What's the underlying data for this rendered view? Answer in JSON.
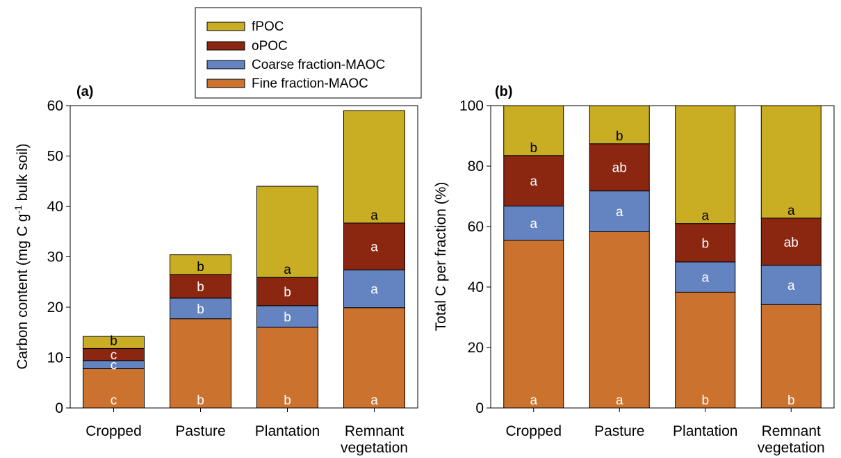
{
  "legend": {
    "items": [
      {
        "label": "fPOC",
        "color": "#c9ad23"
      },
      {
        "label": "oPOC",
        "color": "#8b2611"
      },
      {
        "label": "Coarse fraction-MAOC",
        "color": "#6384c0"
      },
      {
        "label": "Fine fraction-MAOC",
        "color": "#cc722f"
      }
    ]
  },
  "chart_data": [
    {
      "panel_label": "(a)",
      "type": "bar",
      "stacked": true,
      "categories": [
        [
          "Cropped"
        ],
        [
          "Pasture"
        ],
        [
          "Plantation"
        ],
        [
          "Remnant",
          "vegetation"
        ]
      ],
      "ylabel": "Carbon content (mg C g",
      "ylabel_sup": "-1",
      "ylabel_suffix": " bulk soil)",
      "ylim": [
        0,
        60
      ],
      "yticks": [
        0,
        10,
        20,
        30,
        40,
        50,
        60
      ],
      "series": [
        {
          "name": "Fine fraction-MAOC",
          "color": "#cc722f",
          "values": [
            7.8,
            17.7,
            16.0,
            19.9
          ],
          "letters": [
            "c",
            "b",
            "b",
            "a"
          ],
          "letter_color": "#ffffff",
          "letter_pos": "bottom"
        },
        {
          "name": "Coarse fraction-MAOC",
          "color": "#6384c0",
          "values": [
            1.6,
            4.1,
            4.3,
            7.5
          ],
          "letters": [
            "c",
            "b",
            "b",
            "a"
          ],
          "letter_color": "#ffffff",
          "letter_pos": "middle"
        },
        {
          "name": "oPOC",
          "color": "#8b2611",
          "values": [
            2.4,
            4.7,
            5.6,
            9.3
          ],
          "letters": [
            "c",
            "b",
            "b",
            "a"
          ],
          "letter_color": "#ffffff",
          "letter_pos": "middle"
        },
        {
          "name": "fPOC",
          "color": "#c9ad23",
          "values": [
            2.4,
            3.9,
            18.1,
            22.3
          ],
          "letters": [
            "b",
            "b",
            "a",
            "a"
          ],
          "letter_color": "#000000",
          "letter_pos": "bottom"
        }
      ]
    },
    {
      "panel_label": "(b)",
      "type": "bar",
      "stacked": true,
      "categories": [
        [
          "Cropped"
        ],
        [
          "Pasture"
        ],
        [
          "Plantation"
        ],
        [
          "Remnant",
          "vegetation"
        ]
      ],
      "ylabel": "Total C per fraction (%)",
      "ylim": [
        0,
        100
      ],
      "yticks": [
        0,
        20,
        40,
        60,
        80,
        100
      ],
      "series": [
        {
          "name": "Fine fraction-MAOC",
          "color": "#cc722f",
          "values": [
            55.5,
            58.3,
            38.3,
            34.2
          ],
          "letters": [
            "a",
            "a",
            "b",
            "b"
          ],
          "letter_color": "#ffffff",
          "letter_pos": "bottom"
        },
        {
          "name": "Coarse fraction-MAOC",
          "color": "#6384c0",
          "values": [
            11.3,
            13.5,
            10.0,
            13.0
          ],
          "letters": [
            "a",
            "a",
            "a",
            "a"
          ],
          "letter_color": "#ffffff",
          "letter_pos": "middle"
        },
        {
          "name": "oPOC",
          "color": "#8b2611",
          "values": [
            16.7,
            15.6,
            12.7,
            15.6
          ],
          "letters": [
            "a",
            "ab",
            "b",
            "ab"
          ],
          "letter_color": "#ffffff",
          "letter_pos": "middle"
        },
        {
          "name": "fPOC",
          "color": "#c9ad23",
          "values": [
            16.5,
            12.6,
            39.0,
            37.2
          ],
          "letters": [
            "b",
            "b",
            "a",
            "a"
          ],
          "letter_color": "#000000",
          "letter_pos": "bottom"
        }
      ]
    }
  ]
}
